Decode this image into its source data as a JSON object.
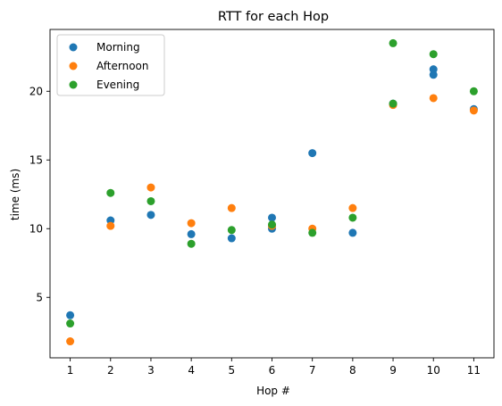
{
  "chart_data": {
    "type": "scatter",
    "title": "RTT for each Hop",
    "xlabel": "Hop #",
    "ylabel": "time (ms)",
    "x": [
      1,
      2,
      3,
      4,
      5,
      6,
      7,
      8,
      9,
      10,
      11
    ],
    "x_ticks": [
      "1",
      "2",
      "3",
      "4",
      "5",
      "6",
      "7",
      "8",
      "9",
      "10",
      "11"
    ],
    "y_ticks": [
      5,
      10,
      15,
      20
    ],
    "xlim": [
      0.5,
      11.5
    ],
    "ylim": [
      0.6,
      24.5
    ],
    "grid": false,
    "legend_position": "top-left",
    "series": [
      {
        "name": "Morning",
        "color": "#1f77b4",
        "points": [
          [
            1,
            3.7
          ],
          [
            2,
            10.6
          ],
          [
            3,
            11.0
          ],
          [
            4,
            9.6
          ],
          [
            5,
            9.3
          ],
          [
            6,
            10.8
          ],
          [
            6,
            10.0
          ],
          [
            7,
            15.5
          ],
          [
            8,
            9.7
          ],
          [
            9,
            19.1
          ],
          [
            10,
            21.6
          ],
          [
            10,
            21.2
          ],
          [
            11,
            18.7
          ]
        ]
      },
      {
        "name": "Afternoon",
        "color": "#ff7f0e",
        "points": [
          [
            1,
            1.8
          ],
          [
            2,
            10.2
          ],
          [
            3,
            13.0
          ],
          [
            4,
            10.4
          ],
          [
            5,
            11.5
          ],
          [
            6,
            10.2
          ],
          [
            7,
            10.0
          ],
          [
            8,
            11.5
          ],
          [
            9,
            19.0
          ],
          [
            10,
            19.5
          ],
          [
            11,
            18.6
          ]
        ]
      },
      {
        "name": "Evening",
        "color": "#2ca02c",
        "points": [
          [
            1,
            3.1
          ],
          [
            2,
            12.6
          ],
          [
            3,
            12.0
          ],
          [
            4,
            8.9
          ],
          [
            5,
            9.9
          ],
          [
            6,
            10.3
          ],
          [
            7,
            9.7
          ],
          [
            8,
            10.8
          ],
          [
            9,
            23.5
          ],
          [
            9,
            19.1
          ],
          [
            10,
            22.7
          ],
          [
            11,
            20.0
          ]
        ]
      }
    ]
  }
}
